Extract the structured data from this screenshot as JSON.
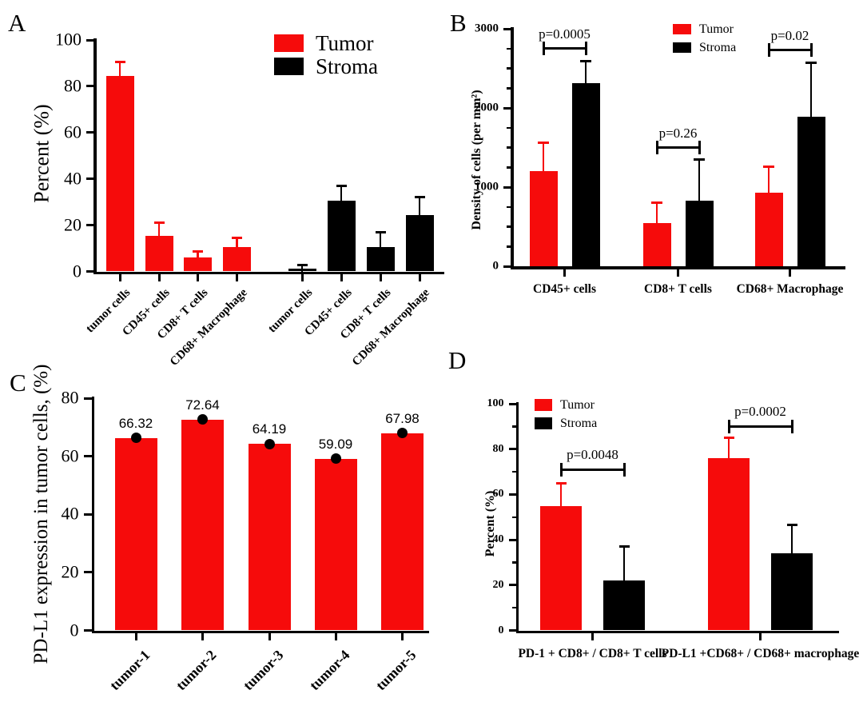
{
  "figure_background": "#FFFFFF",
  "colors": {
    "tumor": "#F60B0B",
    "stroma": "#000000"
  },
  "chart_data": [
    {
      "panel": "A",
      "type": "bar",
      "ylabel": "Percent (%)",
      "ylim": [
        0,
        100
      ],
      "yticks": [
        0,
        20,
        40,
        60,
        80,
        100
      ],
      "categories": [
        "tumor cells",
        "CD45+ cells",
        "CD8+ T cells",
        "CD68+ Macrophage"
      ],
      "layout_note": "two blocks: all Tumor bars then all Stroma bars",
      "legend_position": "top-right",
      "series": [
        {
          "name": "Tumor",
          "color": "#F60B0B",
          "values": [
            84.5,
            15.5,
            6,
            10.5
          ],
          "error_tops": [
            90.5,
            21,
            8.5,
            14.5
          ]
        },
        {
          "name": "Stroma",
          "color": "#000000",
          "values": [
            1.3,
            30.5,
            10.5,
            24.5
          ],
          "error_tops": [
            2.7,
            37,
            17,
            32
          ]
        }
      ]
    },
    {
      "panel": "B",
      "type": "bar",
      "ylabel": "Density of cells (per mm²)",
      "ylim": [
        0,
        3000
      ],
      "yticks": [
        0,
        1000,
        2000,
        3000
      ],
      "minor_tick_step": 250,
      "categories": [
        "CD45+ cells",
        "CD8+ T cells",
        "CD68+ Macrophage"
      ],
      "legend_position": "top-center",
      "series": [
        {
          "name": "Tumor",
          "color": "#F60B0B",
          "values": [
            1200,
            550,
            930
          ],
          "error_tops": [
            1560,
            800,
            1260
          ]
        },
        {
          "name": "Stroma",
          "color": "#000000",
          "values": [
            2310,
            830,
            1890
          ],
          "error_tops": [
            2590,
            1350,
            2570
          ]
        }
      ],
      "p_values": [
        {
          "label": "p=0.0005",
          "category_index": 0,
          "bracket_y": 2750
        },
        {
          "label": "p=0.26",
          "category_index": 1,
          "bracket_y": 1500
        },
        {
          "label": "p=0.02",
          "category_index": 2,
          "bracket_y": 2730
        }
      ]
    },
    {
      "panel": "C",
      "type": "bar",
      "ylabel": "PD-L1 expression in tumor cells, (%)",
      "ylim": [
        0,
        80
      ],
      "yticks": [
        0,
        20,
        40,
        60,
        80
      ],
      "categories": [
        "tumor-1",
        "tumor-2",
        "tumor-3",
        "tumor-4",
        "tumor-5"
      ],
      "series": [
        {
          "name": "PD-L1",
          "color": "#F60B0B",
          "values": [
            66.32,
            72.64,
            64.19,
            59.09,
            67.98
          ]
        }
      ],
      "value_labels": [
        "66.32",
        "72.64",
        "64.19",
        "59.09",
        "67.98"
      ],
      "marker": "black dot on bar top"
    },
    {
      "panel": "D",
      "type": "bar",
      "ylabel": "Percent (%)",
      "ylim": [
        0,
        100
      ],
      "yticks": [
        0,
        20,
        40,
        60,
        80,
        100
      ],
      "minor_tick_step": 10,
      "categories": [
        "PD-1 + CD8+ / CD8+ T cells",
        "PD-L1 +CD68+ / CD68+ macrophage"
      ],
      "legend_position": "top-left",
      "series": [
        {
          "name": "Tumor",
          "color": "#F60B0B",
          "values": [
            55,
            76
          ],
          "error_tops": [
            65,
            85
          ]
        },
        {
          "name": "Stroma",
          "color": "#000000",
          "values": [
            22,
            34
          ],
          "error_tops": [
            37,
            46.5
          ]
        }
      ],
      "p_values": [
        {
          "label": "p=0.0048",
          "category_index": 0,
          "bracket_y": 71
        },
        {
          "label": "p=0.0002",
          "category_index": 1,
          "bracket_y": 90
        }
      ]
    }
  ]
}
